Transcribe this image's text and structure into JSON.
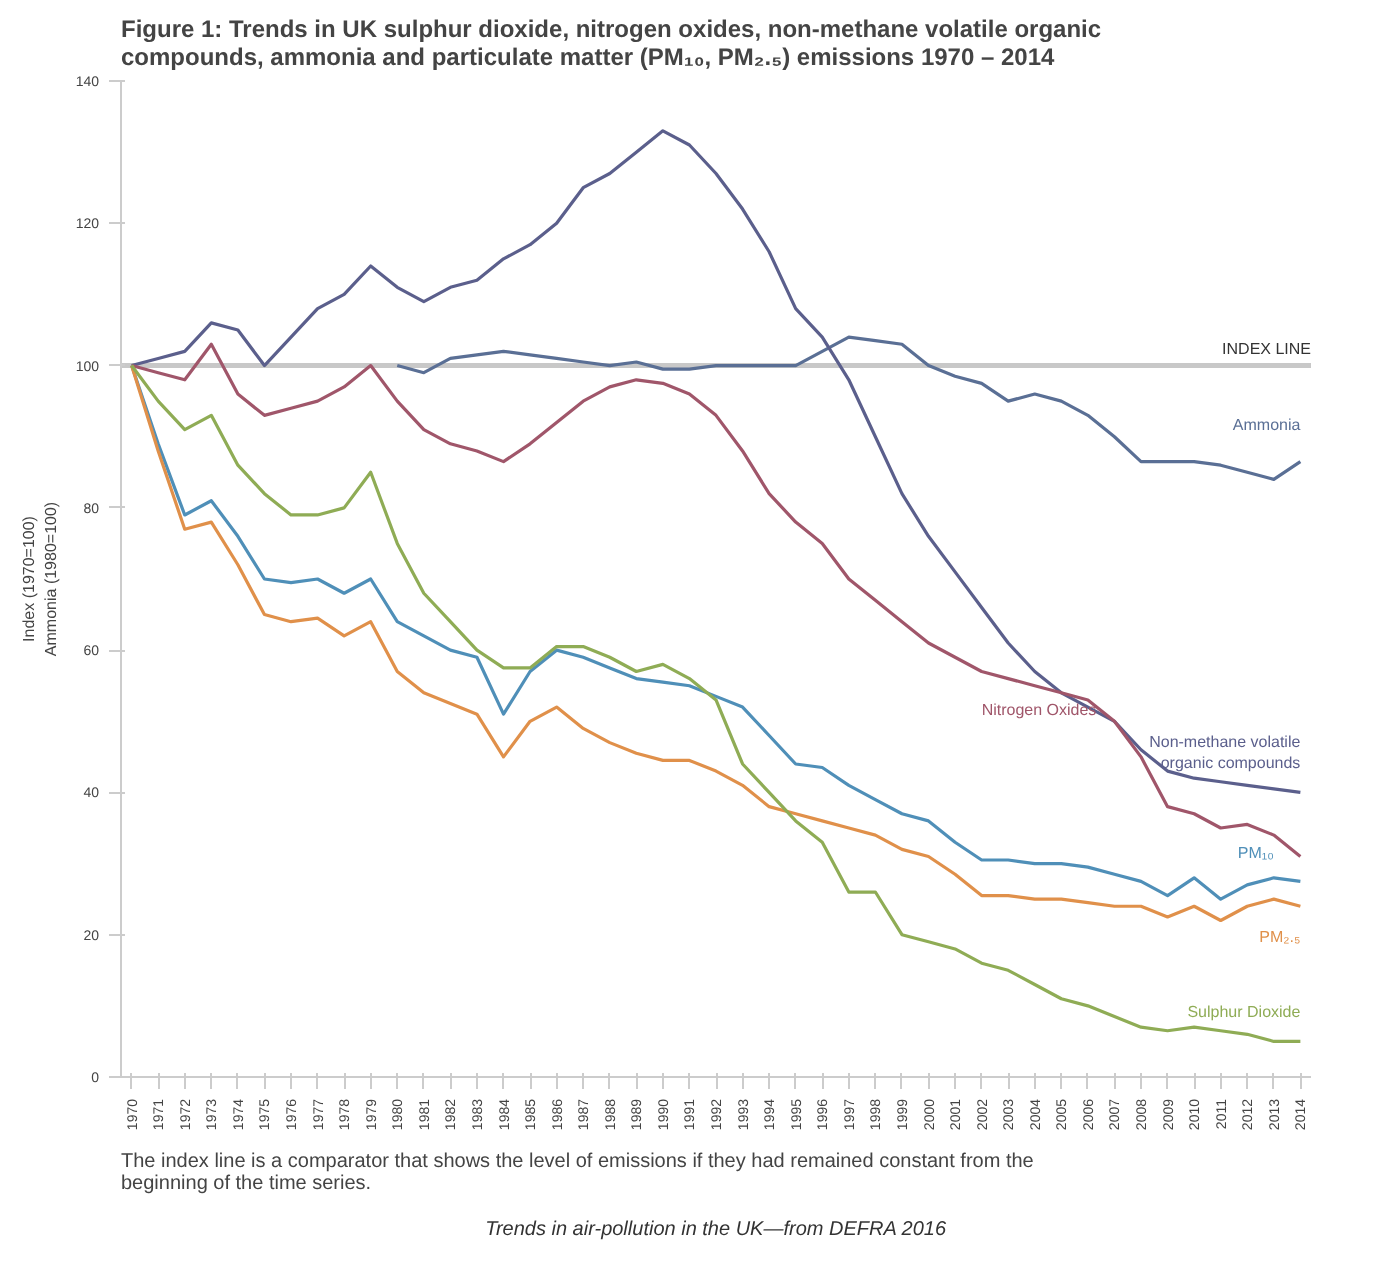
{
  "chart_data": {
    "type": "line",
    "title": "Figure 1: Trends in UK sulphur dioxide, nitrogen oxides, non-methane volatile organic compounds, ammonia and particulate matter (PM₁₀, PM₂.₅) emissions 1970 – 2014",
    "ylabel": "Index (1970=100)\nAmmonia (1980=100)",
    "x": [
      1970,
      1971,
      1972,
      1973,
      1974,
      1975,
      1976,
      1977,
      1978,
      1979,
      1980,
      1981,
      1982,
      1983,
      1984,
      1985,
      1986,
      1987,
      1988,
      1989,
      1990,
      1991,
      1992,
      1993,
      1994,
      1995,
      1996,
      1997,
      1998,
      1999,
      2000,
      2001,
      2002,
      2003,
      2004,
      2005,
      2006,
      2007,
      2008,
      2009,
      2010,
      2011,
      2012,
      2013,
      2014
    ],
    "xlim": [
      1969.6,
      2014.4
    ],
    "xticks": [
      1970,
      1971,
      1972,
      1973,
      1974,
      1975,
      1976,
      1977,
      1978,
      1979,
      1980,
      1981,
      1982,
      1983,
      1984,
      1985,
      1986,
      1987,
      1988,
      1989,
      1990,
      1991,
      1992,
      1993,
      1994,
      1995,
      1996,
      1997,
      1998,
      1999,
      2000,
      2001,
      2002,
      2003,
      2004,
      2005,
      2006,
      2007,
      2008,
      2009,
      2010,
      2011,
      2012,
      2013,
      2014
    ],
    "ylim": [
      0,
      140
    ],
    "yticks": [
      0,
      20,
      40,
      60,
      80,
      100,
      120,
      140
    ],
    "grid": false,
    "series": [
      {
        "name": "Ammonia",
        "color": "#5a6f95",
        "values": [
          null,
          null,
          null,
          null,
          null,
          null,
          null,
          null,
          null,
          null,
          100,
          99,
          101,
          101.5,
          102,
          101.5,
          101,
          100.5,
          100,
          100.5,
          99.5,
          99.5,
          100,
          100,
          100,
          100,
          102,
          104,
          103.5,
          103,
          100,
          98.5,
          97.5,
          95,
          96,
          95,
          93,
          90,
          86.5,
          86.5,
          86.5,
          86,
          85,
          84,
          86.5
        ]
      },
      {
        "name": "Non-methane volatile organic compounds",
        "color": "#5b5f8c",
        "values": [
          100,
          101,
          102,
          106,
          105,
          100,
          104,
          108,
          110,
          114,
          111,
          109,
          111,
          112,
          115,
          117,
          120,
          125,
          127,
          130,
          133,
          131,
          127,
          122,
          116,
          108,
          104,
          98,
          90,
          82,
          76,
          71,
          66,
          61,
          57,
          54,
          52,
          50,
          46,
          43,
          42,
          41.5,
          41,
          40.5,
          40
        ]
      },
      {
        "name": "Nitrogen Oxides",
        "color": "#a0566a",
        "values": [
          100,
          99,
          98,
          103,
          96,
          93,
          94,
          95,
          97,
          100,
          95,
          91,
          89,
          88,
          86.5,
          89,
          92,
          95,
          97,
          98,
          97.5,
          96,
          93,
          88,
          82,
          78,
          75,
          70,
          67,
          64,
          61,
          59,
          57,
          56,
          55,
          54,
          53,
          50,
          45,
          38,
          37,
          35,
          35.5,
          34,
          31
        ]
      },
      {
        "name": "PM₁₀",
        "color": "#4f8fb8",
        "values": [
          100,
          89,
          79,
          81,
          76,
          70,
          69.5,
          70,
          68,
          70,
          64,
          62,
          60,
          59,
          51,
          57,
          60,
          59,
          57.5,
          56,
          55.5,
          55,
          53.5,
          52,
          48,
          44,
          43.5,
          41,
          39,
          37,
          36,
          33,
          30.5,
          30.5,
          30,
          30,
          29.5,
          28.5,
          27.5,
          25.5,
          28,
          25,
          27,
          28,
          27.5
        ]
      },
      {
        "name": "PM₂.₅",
        "color": "#e0904a",
        "values": [
          100,
          88,
          77,
          78,
          72,
          65,
          64,
          64.5,
          62,
          64,
          57,
          54,
          52.5,
          51,
          45,
          50,
          52,
          49,
          47,
          45.5,
          44.5,
          44.5,
          43,
          41,
          38,
          37,
          36,
          35,
          34,
          32,
          31,
          28.5,
          25.5,
          25.5,
          25,
          25,
          24.5,
          24,
          24,
          22.5,
          24,
          22,
          24,
          25,
          24
        ]
      },
      {
        "name": "Sulphur Dioxide",
        "color": "#8fac55",
        "values": [
          100,
          95,
          91,
          93,
          86,
          82,
          79,
          79,
          80,
          85,
          75,
          68,
          64,
          60,
          57.5,
          57.5,
          60.5,
          60.5,
          59,
          57,
          58,
          56,
          53,
          44,
          40,
          36,
          33,
          26,
          26,
          20,
          19,
          18,
          16,
          15,
          13,
          11,
          10,
          8.5,
          7,
          6.5,
          7,
          6.5,
          6,
          5,
          5
        ]
      }
    ],
    "ref_lines": [
      {
        "axis": "y",
        "value": 100,
        "label": "INDEX LINE",
        "color": "#c8c8c8"
      }
    ],
    "annotations": [
      "The index line is a comparator that shows the level of emissions if they had remained constant from the beginning of the time series.",
      "Trends in air-pollution in the UK—from DEFRA 2016"
    ]
  }
}
